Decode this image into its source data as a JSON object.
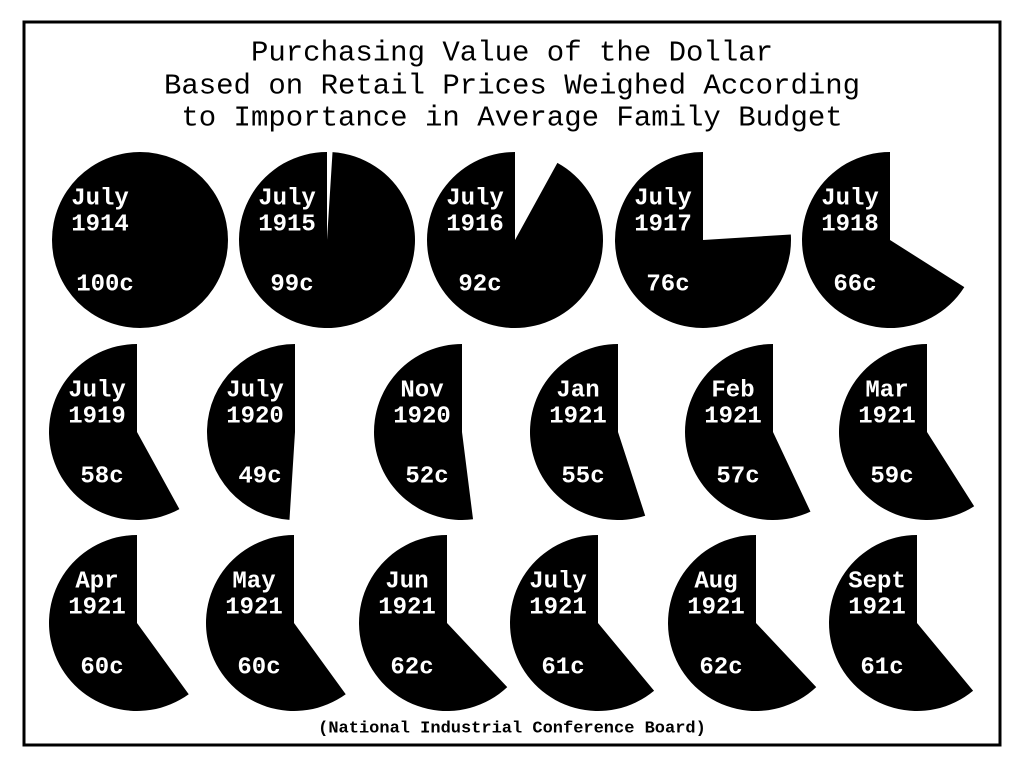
{
  "chart_data": {
    "type": "pie",
    "title": [
      "Purchasing Value of the Dollar",
      "Based on Retail Prices Weighed According",
      "to Importance in Average Family Budget"
    ],
    "categories": [
      [
        "July",
        "1914"
      ],
      [
        "July",
        "1915"
      ],
      [
        "July",
        "1916"
      ],
      [
        "July",
        "1917"
      ],
      [
        "July",
        "1918"
      ],
      [
        "July",
        "1919"
      ],
      [
        "July",
        "1920"
      ],
      [
        "Nov",
        "1920"
      ],
      [
        "Jan",
        "1921"
      ],
      [
        "Feb",
        "1921"
      ],
      [
        "Mar",
        "1921"
      ],
      [
        "Apr",
        "1921"
      ],
      [
        "May",
        "1921"
      ],
      [
        "Jun",
        "1921"
      ],
      [
        "July",
        "1921"
      ],
      [
        "Aug",
        "1921"
      ],
      [
        "Sept",
        "1921"
      ]
    ],
    "values": [
      100,
      99,
      92,
      76,
      66,
      58,
      49,
      52,
      55,
      57,
      59,
      60,
      60,
      62,
      61,
      62,
      61
    ],
    "value_labels": [
      "100c",
      "99c",
      "92c",
      "76c",
      "66c",
      "58c",
      "49c",
      "52c",
      "55c",
      "57c",
      "59c",
      "60c",
      "60c",
      "62c",
      "61c",
      "62c",
      "61c"
    ],
    "color": "#000000",
    "source": "(National Industrial Conference Board)"
  }
}
